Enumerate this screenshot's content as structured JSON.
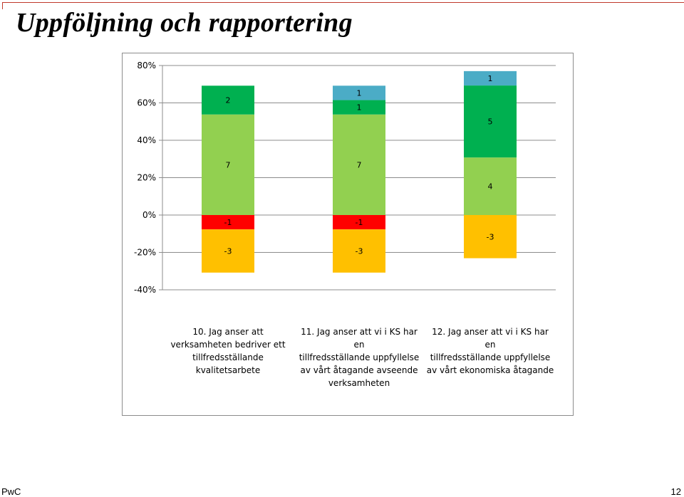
{
  "slide": {
    "title": "Uppföljning och rapportering",
    "footer_left": "PwC",
    "page_number": "12"
  },
  "chart_data": {
    "type": "bar",
    "stacked": true,
    "y_format": "percent",
    "ylim": [
      -0.4,
      0.8
    ],
    "yticks": [
      0.8,
      0.6,
      0.4,
      0.2,
      0,
      -0.2,
      -0.4
    ],
    "ytick_labels": [
      "80%",
      "60%",
      "40%",
      "20%",
      "0%",
      "-20%",
      "-40%"
    ],
    "grid": true,
    "categories": [
      "10. Jag anser att verksamheten bedriver ett tillfredsställande kvalitetsarbete",
      "11. Jag anser att vi i KS har en tillfredsställande uppfyllelse av vårt åtagande avseende verksamheten",
      "12. Jag anser att vi i KS har en tillfredsställande uppfyllelse av vårt ekonomiska åtagande"
    ],
    "category_label_lines": [
      [
        "10. Jag anser att",
        "verksamheten bedriver ett",
        "tillfredsställande",
        "kvalitetsarbete"
      ],
      [
        "11. Jag anser att vi i KS har en",
        "tillfredsställande uppfyllelse",
        "av vårt åtagande avseende",
        "verksamheten"
      ],
      [
        "12. Jag anser att vi i KS har en",
        "tillfredsställande uppfyllelse",
        "av vårt ekonomiska åtagande"
      ]
    ],
    "series": [
      {
        "color": "#ff0000",
        "values": [
          -0.077,
          -0.077,
          0
        ],
        "labels": [
          "-1",
          "-1",
          ""
        ]
      },
      {
        "color": "#ffc000",
        "values": [
          -0.231,
          -0.231,
          -0.231
        ],
        "labels": [
          "-3",
          "-3",
          "-3"
        ]
      },
      {
        "color": "#92d050",
        "values": [
          0.538,
          0.538,
          0.308
        ],
        "labels": [
          "7",
          "7",
          "4"
        ]
      },
      {
        "color": "#00b050",
        "values": [
          0.154,
          0.077,
          0.385
        ],
        "labels": [
          "2",
          "1",
          "5"
        ]
      },
      {
        "color": "#4bacc6",
        "values": [
          0,
          0.077,
          0.077
        ],
        "labels": [
          "",
          "1",
          "1"
        ]
      }
    ]
  }
}
